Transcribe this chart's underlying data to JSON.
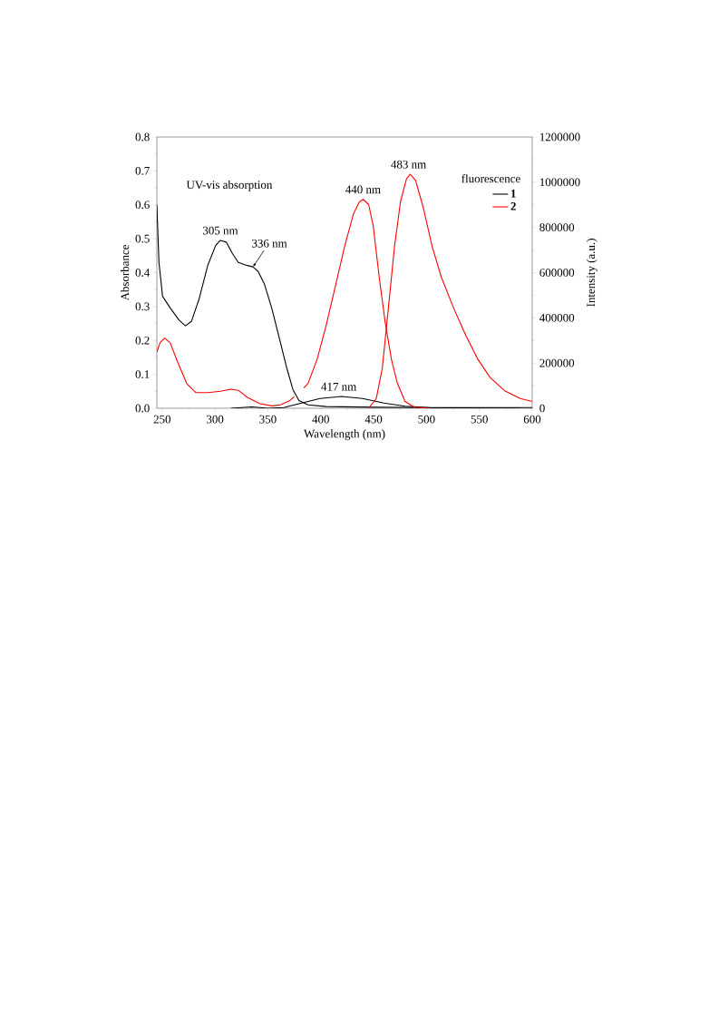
{
  "chart_data": {
    "type": "line",
    "xlabel": "Wavelength (nm)",
    "ylabel": "Absorbance",
    "y2label": "Intensity (a.u.)",
    "legend_title": "fluorescence",
    "xlim": [
      245,
      600
    ],
    "xticks": [
      250,
      300,
      350,
      400,
      450,
      500,
      550,
      600
    ],
    "ylim": [
      0,
      0.8
    ],
    "yticks": [
      {
        "value": 0,
        "label": "0.0"
      },
      0.1,
      0.2,
      0.3,
      0.4,
      0.5,
      0.6,
      0.7,
      0.8
    ],
    "y2lim": [
      0,
      1200000
    ],
    "y2ticks": [
      0,
      200000,
      400000,
      600000,
      800000,
      1000000,
      1200000
    ],
    "grid": false,
    "legend": "top right",
    "line_style": "solid",
    "series": [
      {
        "color": "#000000",
        "x": [
          245,
          247,
          250.4,
          257.6,
          266,
          272,
          277.7,
          285,
          293,
          300.6,
          305,
          310.6,
          316.4,
          322,
          330.6,
          335.8,
          340.7,
          346.5,
          353.6,
          360.8,
          368,
          373.7,
          379.4,
          388,
          405,
          450,
          500,
          550,
          600
        ],
        "values": [
          0.6,
          0.43,
          0.33,
          0.296,
          0.26,
          0.243,
          0.256,
          0.323,
          0.42,
          0.48,
          0.495,
          0.49,
          0.457,
          0.43,
          0.421,
          0.417,
          0.404,
          0.368,
          0.296,
          0.207,
          0.117,
          0.055,
          0.023,
          0.01,
          0.005,
          0.003,
          0.002,
          0.002,
          0.002
        ]
      },
      {
        "color": "#ff0000",
        "x": [
          245,
          248,
          252.4,
          257.6,
          264.8,
          273.4,
          282,
          293.4,
          305,
          315,
          322,
          330.6,
          342,
          353.6,
          362,
          370.8,
          375
        ],
        "values": [
          0.166,
          0.193,
          0.207,
          0.193,
          0.135,
          0.072,
          0.046,
          0.046,
          0.05,
          0.056,
          0.053,
          0.032,
          0.014,
          0.007,
          0.01,
          0.023,
          0.034
        ]
      },
      {
        "name": "1",
        "axis": "y2",
        "color": "#000000",
        "x": [
          315,
          335,
          350,
          365,
          375,
          388,
          399.4,
          419.5,
          439.6,
          459.6,
          479.7,
          502.6,
          588.6
        ],
        "values": [
          0,
          6000,
          0,
          3000,
          15000,
          30000,
          43000,
          52000,
          43000,
          23000,
          9000,
          3000,
          0
        ]
      },
      {
        "axis": "y2",
        "color": "#ff0000",
        "x": [
          384,
          388,
          396.6,
          405,
          413.8,
          422.4,
          431,
          436.7,
          440.1,
          445.3,
          449.6,
          455.3,
          461,
          466.8,
          472.5,
          479.7,
          488.3,
          502.6
        ],
        "values": [
          90000,
          110000,
          217000,
          365000,
          539000,
          713000,
          861000,
          914000,
          924000,
          901000,
          807000,
          579000,
          378000,
          217000,
          110000,
          30000,
          5000,
          0
        ]
      },
      {
        "name": "2",
        "axis": "y2",
        "color": "#ff0000",
        "x": [
          445.3,
          452.5,
          458.2,
          464,
          469.7,
          475.4,
          481.1,
          484.6,
          489.7,
          496.9,
          505.5,
          514.1,
          525.5,
          537,
          548.5,
          560,
          574.3,
          588.6,
          600
        ],
        "values": [
          0,
          43000,
          177000,
          445000,
          713000,
          914000,
          1015000,
          1035000,
          1008000,
          888000,
          713000,
          579000,
          445000,
          324000,
          217000,
          137000,
          76000,
          43000,
          30000
        ]
      }
    ],
    "annotations": [
      "UV-vis absorption",
      {
        "text": "305 nm",
        "x": 305,
        "y": 0.495
      },
      {
        "text": "336 nm",
        "x": 336,
        "y": 0.417
      },
      {
        "text": "417 nm",
        "x": 417,
        "y": 0.035
      },
      {
        "text": "440 nm",
        "x": 440,
        "y": 0.616
      },
      {
        "text": "483 nm",
        "x": 483,
        "y": 0.69
      }
    ]
  }
}
